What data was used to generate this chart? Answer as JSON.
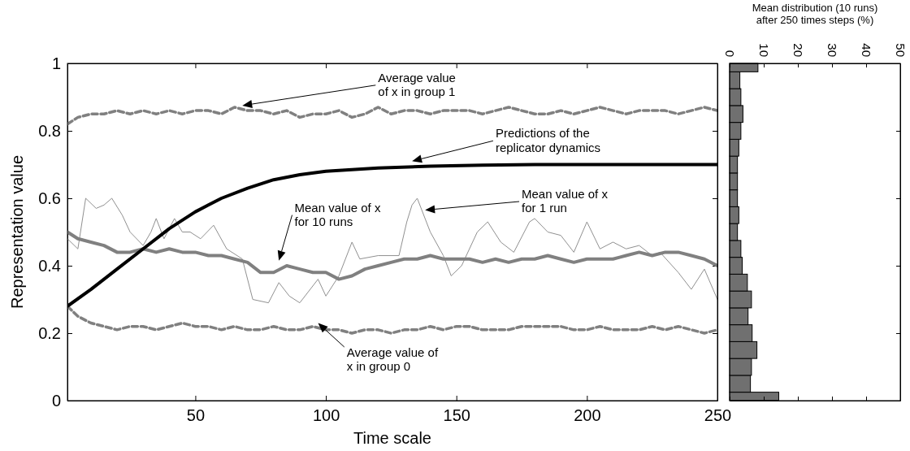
{
  "chart_data": [
    {
      "type": "line",
      "xlabel": "Time scale",
      "ylabel": "Representation value",
      "xlim": [
        1,
        250
      ],
      "ylim": [
        0,
        1
      ],
      "xticks": [
        50,
        100,
        150,
        200,
        250
      ],
      "yticks": [
        0,
        0.2,
        0.4,
        0.6,
        0.8,
        1
      ],
      "grid": false,
      "series": [
        {
          "color": "#808080",
          "line_style": "dashed",
          "x": [
            1,
            5,
            10,
            15,
            20,
            25,
            30,
            35,
            40,
            45,
            50,
            55,
            60,
            65,
            70,
            75,
            80,
            85,
            90,
            95,
            100,
            105,
            110,
            115,
            120,
            125,
            130,
            135,
            140,
            145,
            150,
            155,
            160,
            165,
            170,
            175,
            180,
            185,
            190,
            195,
            200,
            205,
            210,
            215,
            220,
            225,
            230,
            235,
            240,
            245,
            250
          ],
          "values": [
            0.82,
            0.84,
            0.85,
            0.85,
            0.86,
            0.85,
            0.86,
            0.85,
            0.86,
            0.85,
            0.86,
            0.86,
            0.85,
            0.87,
            0.86,
            0.86,
            0.85,
            0.86,
            0.84,
            0.85,
            0.85,
            0.86,
            0.84,
            0.85,
            0.87,
            0.85,
            0.86,
            0.86,
            0.85,
            0.86,
            0.86,
            0.86,
            0.85,
            0.86,
            0.87,
            0.86,
            0.85,
            0.85,
            0.86,
            0.85,
            0.86,
            0.87,
            0.86,
            0.85,
            0.86,
            0.86,
            0.86,
            0.85,
            0.86,
            0.87,
            0.86
          ]
        },
        {
          "color": "#808080",
          "line_style": "dashed",
          "x": [
            1,
            5,
            10,
            15,
            20,
            25,
            30,
            35,
            40,
            45,
            50,
            55,
            60,
            65,
            70,
            75,
            80,
            85,
            90,
            95,
            100,
            105,
            110,
            115,
            120,
            125,
            130,
            135,
            140,
            145,
            150,
            155,
            160,
            165,
            170,
            175,
            180,
            185,
            190,
            195,
            200,
            205,
            210,
            215,
            220,
            225,
            230,
            235,
            240,
            245,
            250
          ],
          "values": [
            0.28,
            0.25,
            0.23,
            0.22,
            0.21,
            0.22,
            0.22,
            0.21,
            0.22,
            0.23,
            0.22,
            0.22,
            0.21,
            0.22,
            0.21,
            0.21,
            0.22,
            0.21,
            0.21,
            0.22,
            0.21,
            0.21,
            0.2,
            0.21,
            0.21,
            0.2,
            0.21,
            0.21,
            0.22,
            0.21,
            0.22,
            0.22,
            0.21,
            0.21,
            0.21,
            0.22,
            0.22,
            0.22,
            0.22,
            0.21,
            0.21,
            0.22,
            0.21,
            0.21,
            0.21,
            0.22,
            0.21,
            0.22,
            0.21,
            0.2,
            0.21
          ]
        },
        {
          "color": "#909090",
          "x": [
            1,
            5,
            8,
            12,
            15,
            18,
            22,
            25,
            30,
            33,
            35,
            38,
            42,
            45,
            48,
            52,
            57,
            62,
            68,
            72,
            78,
            82,
            86,
            90,
            97,
            100,
            105,
            110,
            113,
            120,
            128,
            131,
            133,
            135,
            140,
            145,
            148,
            152,
            158,
            162,
            167,
            172,
            178,
            180,
            185,
            190,
            195,
            200,
            205,
            210,
            215,
            220,
            225,
            228,
            235,
            240,
            245,
            250
          ],
          "values": [
            0.48,
            0.45,
            0.6,
            0.57,
            0.58,
            0.6,
            0.55,
            0.5,
            0.46,
            0.5,
            0.54,
            0.48,
            0.54,
            0.5,
            0.5,
            0.48,
            0.52,
            0.45,
            0.42,
            0.3,
            0.29,
            0.35,
            0.31,
            0.29,
            0.36,
            0.31,
            0.37,
            0.47,
            0.42,
            0.43,
            0.43,
            0.53,
            0.58,
            0.6,
            0.5,
            0.43,
            0.37,
            0.4,
            0.5,
            0.53,
            0.47,
            0.44,
            0.53,
            0.54,
            0.5,
            0.49,
            0.44,
            0.53,
            0.45,
            0.47,
            0.45,
            0.46,
            0.43,
            0.44,
            0.38,
            0.33,
            0.39,
            0.3
          ]
        },
        {
          "color": "#808080",
          "x": [
            1,
            5,
            10,
            15,
            20,
            25,
            30,
            35,
            40,
            45,
            50,
            55,
            60,
            65,
            70,
            75,
            80,
            85,
            90,
            95,
            100,
            105,
            110,
            115,
            120,
            125,
            130,
            135,
            140,
            145,
            150,
            155,
            160,
            165,
            170,
            175,
            180,
            185,
            190,
            195,
            200,
            205,
            210,
            215,
            220,
            225,
            230,
            235,
            240,
            245,
            250
          ],
          "values": [
            0.5,
            0.48,
            0.47,
            0.46,
            0.44,
            0.44,
            0.45,
            0.44,
            0.45,
            0.44,
            0.44,
            0.43,
            0.43,
            0.42,
            0.41,
            0.38,
            0.38,
            0.4,
            0.39,
            0.38,
            0.38,
            0.36,
            0.37,
            0.39,
            0.4,
            0.41,
            0.42,
            0.42,
            0.43,
            0.42,
            0.42,
            0.42,
            0.41,
            0.42,
            0.41,
            0.42,
            0.42,
            0.43,
            0.42,
            0.41,
            0.42,
            0.42,
            0.42,
            0.43,
            0.44,
            0.43,
            0.44,
            0.44,
            0.43,
            0.42,
            0.4
          ]
        },
        {
          "color": "#000000",
          "x": [
            1,
            10,
            20,
            30,
            40,
            50,
            60,
            70,
            80,
            90,
            100,
            110,
            120,
            140,
            160,
            180,
            200,
            225,
            250
          ],
          "values": [
            0.28,
            0.33,
            0.39,
            0.45,
            0.51,
            0.56,
            0.6,
            0.63,
            0.655,
            0.67,
            0.68,
            0.685,
            0.69,
            0.695,
            0.698,
            0.7,
            0.7,
            0.7,
            0.7
          ]
        }
      ],
      "annotations": [
        "Average value\nof x in group 1",
        "Predictions of the\nreplicator dynamics",
        "Mean value of x\nfor 10 runs",
        "Mean value of x\nfor 1 run",
        "Average value of\nx in group 0"
      ]
    },
    {
      "type": "histogram",
      "orientation": "horizontal",
      "title": "Mean distribution (10 runs)\nafter 250 times steps (%)",
      "color": "#707070",
      "xlim": [
        0,
        50
      ],
      "xticks": [
        0,
        10,
        20,
        30,
        40,
        50
      ],
      "ylim": [
        0,
        1
      ],
      "yticks": [
        {
          "value": 0.2,
          "label": null
        },
        {
          "value": 0.4,
          "label": null
        },
        {
          "value": 0.6,
          "label": null
        },
        {
          "value": 0.8,
          "label": null
        }
      ],
      "tick_labels": "x",
      "bins": [
        0,
        0.025,
        0.075,
        0.125,
        0.175,
        0.225,
        0.275,
        0.325,
        0.375,
        0.425,
        0.475,
        0.525,
        0.575,
        0.625,
        0.675,
        0.725,
        0.775,
        0.825,
        0.875,
        0.925,
        0.975,
        1
      ],
      "values": [
        14.4,
        6.1,
        6.4,
        8.0,
        6.6,
        5.4,
        6.4,
        5.2,
        3.7,
        3.3,
        2.3,
        2.7,
        2.3,
        2.3,
        2.3,
        2.7,
        3.3,
        3.9,
        3.3,
        3.0,
        8.3
      ]
    }
  ]
}
